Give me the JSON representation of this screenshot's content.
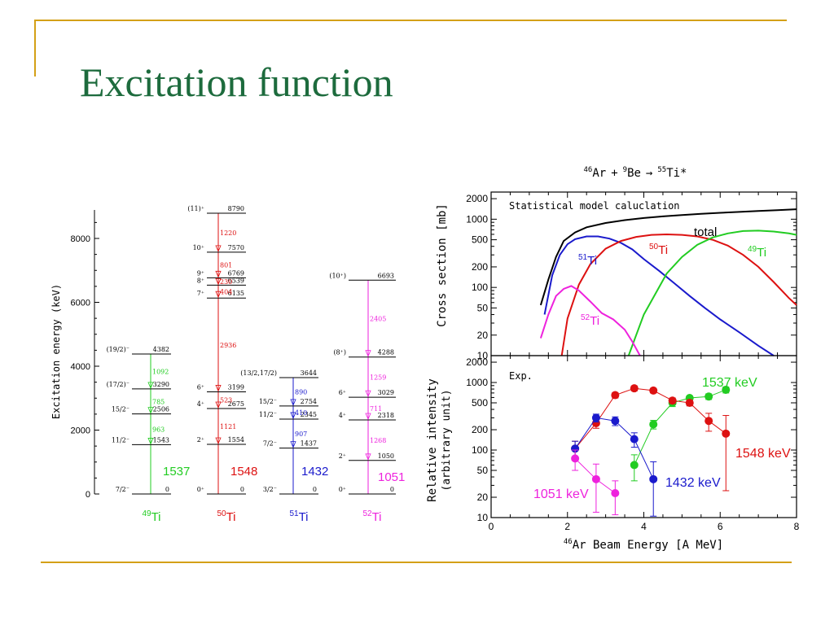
{
  "slide": {
    "title": "Excitation function"
  },
  "chart_data": [
    {
      "type": "level-scheme",
      "ylabel": "Excitation energy (keV)",
      "ylim": [
        0,
        8700
      ],
      "yticks": [
        "0",
        "2000",
        "4000",
        "6000",
        "8000"
      ],
      "colors": {
        "49Ti": "#22cc22",
        "50Ti": "#dd1111",
        "51Ti": "#1a1acc",
        "52Ti": "#ee22dd"
      },
      "nuclei": [
        {
          "key": "49Ti",
          "mass": "49",
          "element": "Ti",
          "label": "1537",
          "levels": [
            {
              "spin": "7/2⁻",
              "energy": 0,
              "label": "0"
            },
            {
              "spin": "11/2⁻",
              "energy": 1543,
              "label": "1543"
            },
            {
              "spin": "15/2⁻",
              "energy": 2506,
              "label": "2506"
            },
            {
              "spin": "(17/2)⁻",
              "energy": 3290,
              "label": "3290"
            },
            {
              "spin": "(19/2)⁻",
              "energy": 4382,
              "label": "4382"
            }
          ],
          "transitions": [
            {
              "label": "963",
              "from": 2506,
              "to": 1543
            },
            {
              "label": "785",
              "from": 3290,
              "to": 2506
            },
            {
              "label": "1092",
              "from": 4382,
              "to": 3290
            }
          ]
        },
        {
          "key": "50Ti",
          "mass": "50",
          "element": "Ti",
          "label": "1548",
          "levels": [
            {
              "spin": "0⁺",
              "energy": 0,
              "label": "0"
            },
            {
              "spin": "2⁺",
              "energy": 1554,
              "label": "1554"
            },
            {
              "spin": "4⁺",
              "energy": 2675,
              "label": "2675"
            },
            {
              "spin": "6⁺",
              "energy": 3199,
              "label": "3199"
            },
            {
              "spin": "7⁺",
              "energy": 6135,
              "label": "6135"
            },
            {
              "spin": "8⁺",
              "energy": 6539,
              "label": "6539"
            },
            {
              "spin": "9⁺",
              "energy": 6769,
              "label": "6769"
            },
            {
              "spin": "10⁺",
              "energy": 7570,
              "label": "7570"
            },
            {
              "spin": "(11)⁺",
              "energy": 8790,
              "label": "8790"
            }
          ],
          "transitions": [
            {
              "label": "1121",
              "from": 2675,
              "to": 1554
            },
            {
              "label": "523",
              "from": 3199,
              "to": 2675
            },
            {
              "label": "2936",
              "from": 6135,
              "to": 3199
            },
            {
              "label": "404",
              "from": 6539,
              "to": 6135
            },
            {
              "label": "230",
              "from": 6769,
              "to": 6539
            },
            {
              "label": "801",
              "from": 7570,
              "to": 6769
            },
            {
              "label": "1220",
              "from": 8790,
              "to": 7570
            }
          ]
        },
        {
          "key": "51Ti",
          "mass": "51",
          "element": "Ti",
          "label": "1432",
          "levels": [
            {
              "spin": "3/2⁻",
              "energy": 0,
              "label": "0"
            },
            {
              "spin": "7/2⁻",
              "energy": 1437,
              "label": "1437"
            },
            {
              "spin": "11/2⁻",
              "energy": 2345,
              "label": "2345"
            },
            {
              "spin": "15/2⁻",
              "energy": 2754,
              "label": "2754"
            },
            {
              "spin": "(13/2,17/2)",
              "energy": 3644,
              "label": "3644"
            }
          ],
          "transitions": [
            {
              "label": "907",
              "from": 2345,
              "to": 1437
            },
            {
              "label": "410",
              "from": 2754,
              "to": 2345
            },
            {
              "label": "890",
              "from": 3644,
              "to": 2754
            }
          ]
        },
        {
          "key": "52Ti",
          "mass": "52",
          "element": "Ti",
          "label": "1051",
          "levels": [
            {
              "spin": "0⁺",
              "energy": 0,
              "label": "0"
            },
            {
              "spin": "2⁺",
              "energy": 1050,
              "label": "1050"
            },
            {
              "spin": "4⁺",
              "energy": 2318,
              "label": "2318"
            },
            {
              "spin": "6⁺",
              "energy": 3029,
              "label": "3029"
            },
            {
              "spin": "(8⁺)",
              "energy": 4288,
              "label": "4288"
            },
            {
              "spin": "(10⁺)",
              "energy": 6693,
              "label": "6693"
            }
          ],
          "transitions": [
            {
              "label": "1268",
              "from": 2318,
              "to": 1050
            },
            {
              "label": "711",
              "from": 3029,
              "to": 2318
            },
            {
              "label": "1259",
              "from": 4288,
              "to": 3029
            },
            {
              "label": "2405",
              "from": 6693,
              "to": 4288
            }
          ]
        }
      ]
    },
    {
      "type": "line",
      "title_parts": {
        "a_mass": "46",
        "a": "Ar",
        "b_mass": "9",
        "b": "Be",
        "c_mass": "55",
        "c": "Ti*",
        "plus": "+",
        "arrow": "→"
      },
      "annotation": "Statistical model caluclation",
      "ylabel": "Cross section [mb]",
      "yscale": "log",
      "ylim": [
        10,
        2500
      ],
      "xlim": [
        0,
        8
      ],
      "yticks": [
        10,
        20,
        50,
        100,
        200,
        500,
        1000,
        2000
      ],
      "series": [
        {
          "name": "total",
          "label": "total",
          "color": "#000000",
          "x": [
            1.3,
            1.5,
            1.7,
            1.9,
            2.2,
            2.5,
            3.0,
            3.5,
            4.0,
            4.5,
            5.0,
            5.5,
            6.0,
            6.5,
            7.0,
            7.5,
            8.0
          ],
          "y": [
            55,
            130,
            280,
            480,
            640,
            760,
            880,
            970,
            1040,
            1100,
            1150,
            1200,
            1240,
            1280,
            1320,
            1360,
            1400
          ]
        },
        {
          "name": "51Ti",
          "mass": "51",
          "element": "Ti",
          "color": "#1a1acc",
          "x": [
            1.4,
            1.6,
            1.8,
            2.0,
            2.2,
            2.5,
            2.8,
            3.1,
            3.4,
            3.7,
            4.0,
            4.4,
            4.8,
            5.2,
            5.6,
            6.0,
            6.5,
            7.0,
            7.4
          ],
          "y": [
            40,
            150,
            300,
            430,
            510,
            560,
            560,
            520,
            450,
            360,
            260,
            175,
            115,
            75,
            50,
            34,
            22,
            14,
            10
          ]
        },
        {
          "name": "50Ti",
          "mass": "50",
          "element": "Ti",
          "color": "#dd1111",
          "x": [
            1.85,
            2.0,
            2.3,
            2.6,
            3.0,
            3.4,
            3.8,
            4.2,
            4.6,
            5.0,
            5.4,
            5.8,
            6.2,
            6.6,
            7.0,
            7.4,
            7.8,
            8.0
          ],
          "y": [
            10,
            35,
            110,
            220,
            370,
            480,
            550,
            590,
            600,
            590,
            560,
            500,
            410,
            300,
            200,
            120,
            70,
            55
          ]
        },
        {
          "name": "49Ti",
          "mass": "49",
          "element": "Ti",
          "color": "#22cc22",
          "x": [
            3.6,
            3.8,
            4.0,
            4.3,
            4.6,
            5.0,
            5.4,
            5.8,
            6.2,
            6.6,
            7.0,
            7.4,
            7.8,
            8.0
          ],
          "y": [
            10,
            20,
            40,
            80,
            160,
            280,
            420,
            540,
            620,
            670,
            680,
            660,
            620,
            590
          ]
        },
        {
          "name": "52Ti",
          "mass": "52",
          "element": "Ti",
          "color": "#ee22dd",
          "x": [
            1.3,
            1.5,
            1.7,
            1.9,
            2.1,
            2.3,
            2.6,
            2.9,
            3.2,
            3.5,
            3.7,
            3.9
          ],
          "y": [
            18,
            40,
            75,
            95,
            105,
            90,
            62,
            42,
            34,
            24,
            16,
            10
          ]
        }
      ]
    },
    {
      "type": "scatter",
      "annotation": "Exp.",
      "ylabel": "Relative intensity",
      "ylabel2": "(arbitrary unit)",
      "xlabel_parts": {
        "mass": "46",
        "text": "Ar Beam Energy [A MeV]"
      },
      "yscale": "log",
      "ylim": [
        10,
        2500
      ],
      "xlim": [
        0,
        8
      ],
      "xticks": [
        0,
        2,
        4,
        6,
        8
      ],
      "yticks": [
        10,
        20,
        50,
        100,
        200,
        500,
        1000,
        2000
      ],
      "series": [
        {
          "name": "1537 keV",
          "label": "1537 keV",
          "color": "#22cc22",
          "x": [
            3.75,
            4.25,
            4.75,
            5.2,
            5.7,
            6.15
          ],
          "y": [
            60,
            240,
            500,
            590,
            620,
            780
          ],
          "err": [
            25,
            35,
            60,
            40,
            60,
            80
          ]
        },
        {
          "name": "1548 keV",
          "label": "1548 keV",
          "color": "#dd1111",
          "x": [
            2.2,
            2.75,
            3.25,
            3.75,
            4.25,
            4.75,
            5.2,
            5.7,
            6.15
          ],
          "y": [
            105,
            250,
            650,
            820,
            760,
            540,
            500,
            270,
            175
          ],
          "err": [
            30,
            40,
            60,
            70,
            60,
            50,
            50,
            80,
            150
          ]
        },
        {
          "name": "1432 keV",
          "label": "1432 keV",
          "color": "#1a1acc",
          "x": [
            2.2,
            2.75,
            3.25,
            3.75,
            4.25
          ],
          "y": [
            105,
            300,
            270,
            145,
            37
          ],
          "err": [
            30,
            40,
            40,
            35,
            30
          ]
        },
        {
          "name": "1051 keV",
          "label": "1051 keV",
          "color": "#ee22dd",
          "x": [
            2.2,
            2.75,
            3.25
          ],
          "y": [
            75,
            37,
            23
          ],
          "err": [
            25,
            25,
            12
          ]
        }
      ]
    }
  ]
}
